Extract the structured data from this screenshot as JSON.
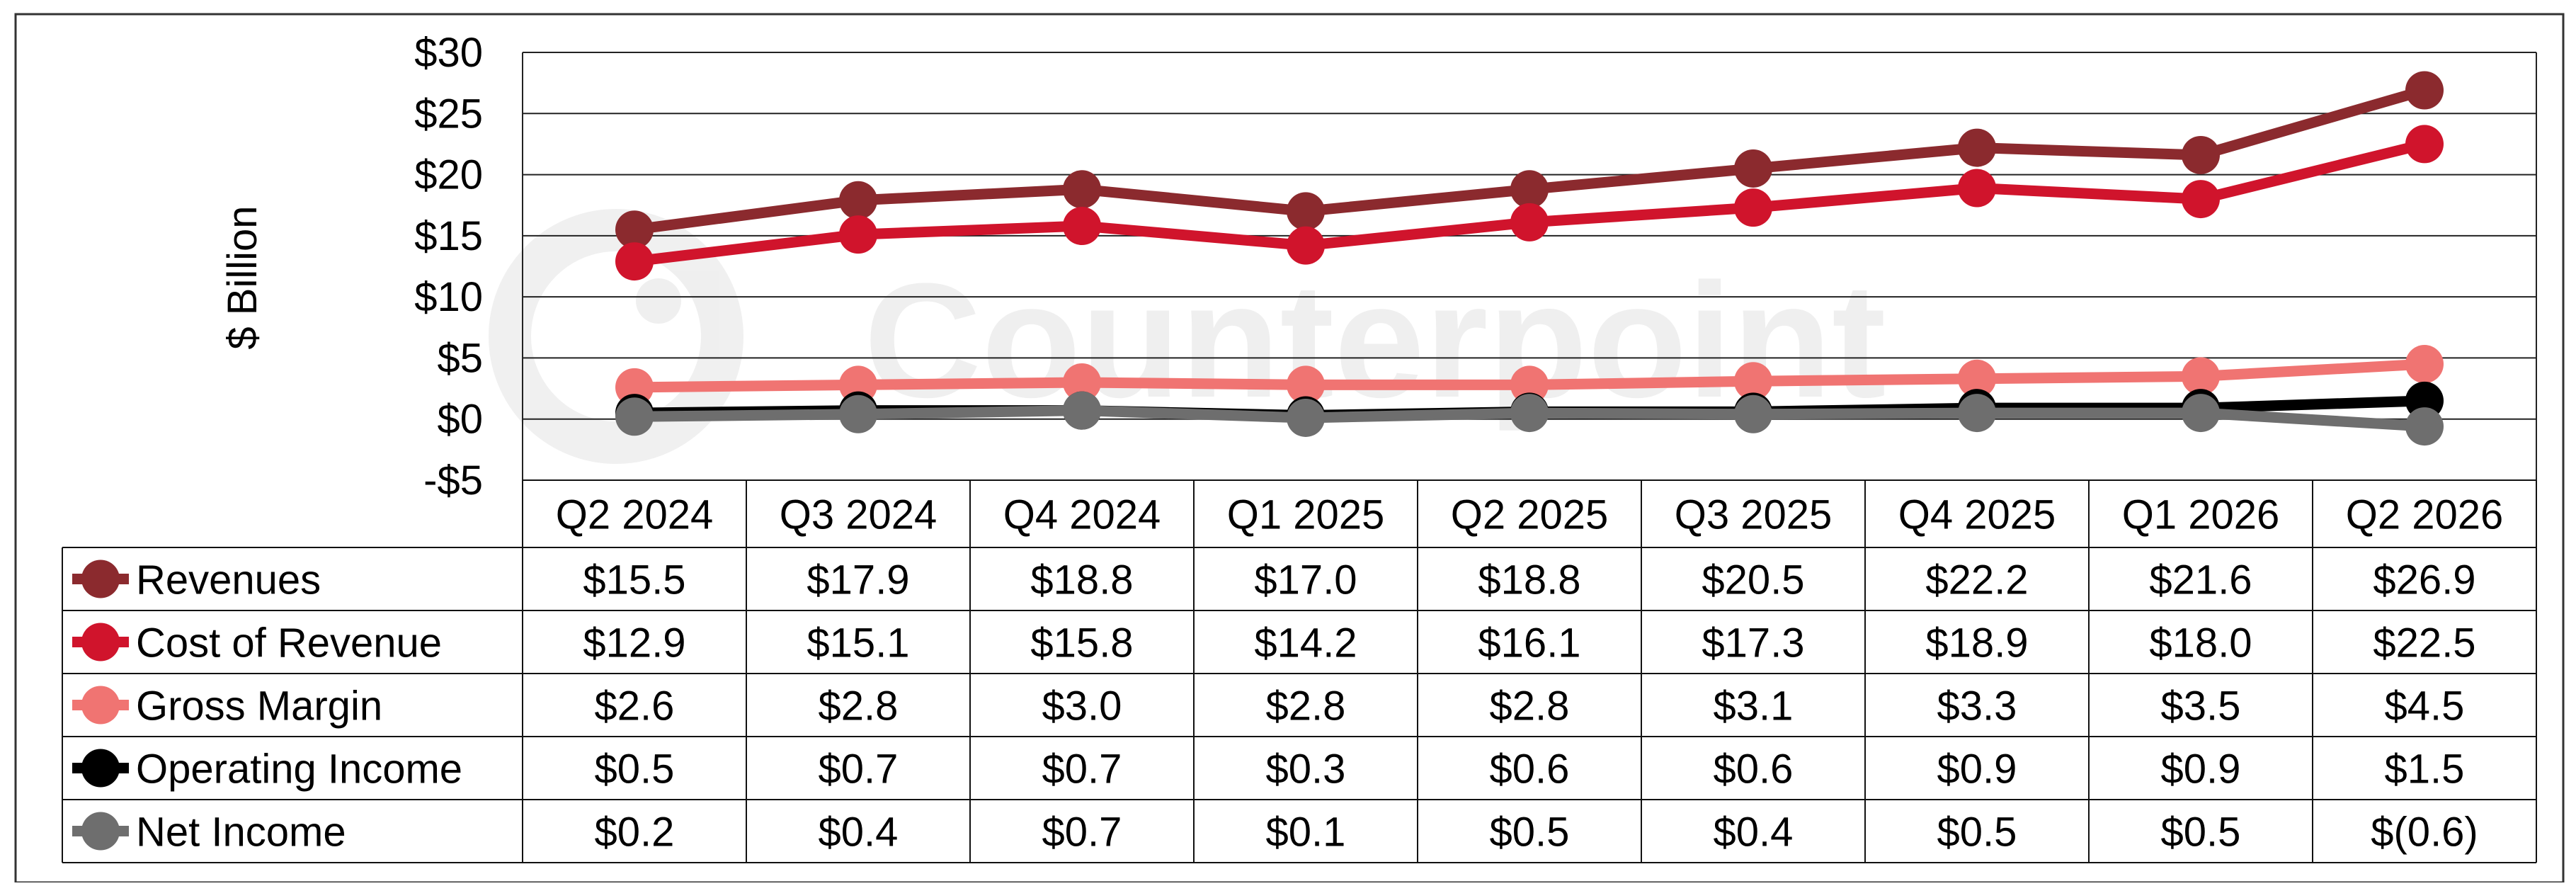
{
  "chart_data": {
    "type": "line",
    "ylabel": "$ Billion",
    "ylim": [
      -5,
      30
    ],
    "yticks": [
      -5,
      0,
      5,
      10,
      15,
      20,
      25,
      30
    ],
    "ytick_labels": [
      "-$5",
      "$0",
      "$5",
      "$10",
      "$15",
      "$20",
      "$25",
      "$30"
    ],
    "grid": true,
    "legend": "data-table-rows",
    "categories": [
      "Q2 2024",
      "Q3 2024",
      "Q4 2024",
      "Q1 2025",
      "Q2 2025",
      "Q3 2025",
      "Q4 2025",
      "Q1 2026",
      "Q2 2026"
    ],
    "watermark": "Counterpoint",
    "series": [
      {
        "name": "Revenues",
        "color": "#8b2a2e",
        "values": [
          15.5,
          17.9,
          18.8,
          17.0,
          18.8,
          20.5,
          22.2,
          21.6,
          26.9
        ],
        "labels": [
          "$15.5",
          "$17.9",
          "$18.8",
          "$17.0",
          "$18.8",
          "$20.5",
          "$22.2",
          "$21.6",
          "$26.9"
        ]
      },
      {
        "name": "Cost of Revenue",
        "color": "#d0142c",
        "values": [
          12.9,
          15.1,
          15.8,
          14.2,
          16.1,
          17.3,
          18.9,
          18.0,
          22.5
        ],
        "labels": [
          "$12.9",
          "$15.1",
          "$15.8",
          "$14.2",
          "$16.1",
          "$17.3",
          "$18.9",
          "$18.0",
          "$22.5"
        ]
      },
      {
        "name": "Gross Margin",
        "color": "#f07472",
        "values": [
          2.6,
          2.8,
          3.0,
          2.8,
          2.8,
          3.1,
          3.3,
          3.5,
          4.5
        ],
        "labels": [
          "$2.6",
          "$2.8",
          "$3.0",
          "$2.8",
          "$2.8",
          "$3.1",
          "$3.3",
          "$3.5",
          "$4.5"
        ]
      },
      {
        "name": "Operating Income",
        "color": "#000000",
        "values": [
          0.5,
          0.7,
          0.7,
          0.3,
          0.6,
          0.6,
          0.9,
          0.9,
          1.5
        ],
        "labels": [
          "$0.5",
          "$0.7",
          "$0.7",
          "$0.3",
          "$0.6",
          "$0.6",
          "$0.9",
          "$0.9",
          "$1.5"
        ]
      },
      {
        "name": "Net Income",
        "color": "#6e6e6e",
        "values": [
          0.2,
          0.4,
          0.7,
          0.1,
          0.5,
          0.4,
          0.5,
          0.5,
          -0.6
        ],
        "labels": [
          "$0.2",
          "$0.4",
          "$0.7",
          "$0.1",
          "$0.5",
          "$0.4",
          "$0.5",
          "$0.5",
          "$(0.6)"
        ]
      }
    ]
  }
}
